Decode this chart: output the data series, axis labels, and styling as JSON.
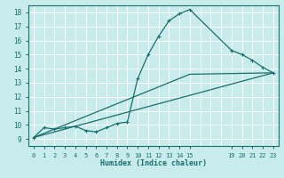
{
  "xlabel": "Humidex (Indice chaleur)",
  "ylabel": "",
  "bg_color": "#c8ecec",
  "grid_color": "#ffffff",
  "line_color": "#1a6e6e",
  "xlim": [
    -0.5,
    23.5
  ],
  "ylim": [
    8.5,
    18.5
  ],
  "xticks_labeled": [
    0,
    1,
    2,
    3,
    4,
    5,
    6,
    7,
    8,
    9,
    10,
    11,
    12,
    13,
    14,
    15,
    19,
    20,
    21,
    22,
    23
  ],
  "xtick_labels": [
    "0",
    "1",
    "2",
    "3",
    "4",
    "5",
    "6",
    "7",
    "8",
    "9",
    "10",
    "11",
    "12",
    "13",
    "14",
    "15",
    "19",
    "20",
    "21",
    "22",
    "23"
  ],
  "xticks_all": [
    0,
    1,
    2,
    3,
    4,
    5,
    6,
    7,
    8,
    9,
    10,
    11,
    12,
    13,
    14,
    15,
    16,
    17,
    18,
    19,
    20,
    21,
    22,
    23
  ],
  "yticks": [
    9,
    10,
    11,
    12,
    13,
    14,
    15,
    16,
    17,
    18
  ],
  "line1_x": [
    0,
    1,
    2,
    3,
    4,
    5,
    6,
    7,
    8,
    9,
    10,
    11,
    12,
    13,
    14,
    15,
    19,
    20,
    21,
    22,
    23
  ],
  "line1_y": [
    9.1,
    9.8,
    9.7,
    9.8,
    9.9,
    9.6,
    9.5,
    9.8,
    10.1,
    10.2,
    13.3,
    15.0,
    16.3,
    17.4,
    17.9,
    18.2,
    15.3,
    15.0,
    14.6,
    14.1,
    13.7
  ],
  "line2_x": [
    0,
    23
  ],
  "line2_y": [
    9.1,
    13.7
  ],
  "line3_x": [
    0,
    15,
    23
  ],
  "line3_y": [
    9.1,
    13.6,
    13.7
  ]
}
